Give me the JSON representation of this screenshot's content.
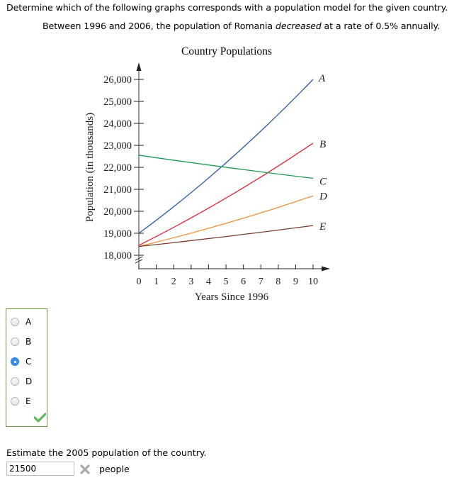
{
  "question": {
    "instruction": "Determine which of the following graphs corresponds with a population model for the given country.",
    "prompt_before": "Between 1996 and 2006, the population of Romania ",
    "prompt_emphasis": "decreased",
    "prompt_after": " at a rate of 0.5% annually."
  },
  "chart_data": {
    "type": "line",
    "title": "Country Populations",
    "xlabel": "Years Since 1996",
    "ylabel": "Population (in thousands)",
    "x_ticks": [
      0,
      1,
      2,
      3,
      4,
      5,
      6,
      7,
      8,
      9,
      10
    ],
    "y_ticks": [
      "18,000",
      "19,000",
      "20,000",
      "21,000",
      "22,000",
      "23,000",
      "24,000",
      "25,000",
      "26,000"
    ],
    "xlim": [
      0,
      10
    ],
    "ylim": [
      18000,
      26000
    ],
    "axis_break": true,
    "grid": false,
    "series": [
      {
        "name": "A",
        "color": "#2a5fa8",
        "x": [
          0,
          5,
          10
        ],
        "values": [
          19000,
          22200,
          26000
        ]
      },
      {
        "name": "B",
        "color": "#e0252e",
        "x": [
          0,
          5,
          10
        ],
        "values": [
          18450,
          20600,
          23100
        ]
      },
      {
        "name": "C",
        "color": "#1c9a55",
        "x": [
          0,
          5,
          10
        ],
        "values": [
          22550,
          22000,
          21500
        ]
      },
      {
        "name": "D",
        "color": "#f0913a",
        "x": [
          0,
          5,
          10
        ],
        "values": [
          18400,
          19450,
          20700
        ]
      },
      {
        "name": "E",
        "color": "#7b3a2a",
        "x": [
          0,
          5,
          10
        ],
        "values": [
          18400,
          18850,
          19350
        ]
      }
    ]
  },
  "choices": {
    "options": [
      "A",
      "B",
      "C",
      "D",
      "E"
    ],
    "selected": "C",
    "result": "correct"
  },
  "estimate": {
    "prompt": "Estimate the 2005 population of the country.",
    "value": "21500",
    "unit": "people",
    "result": "incorrect"
  }
}
